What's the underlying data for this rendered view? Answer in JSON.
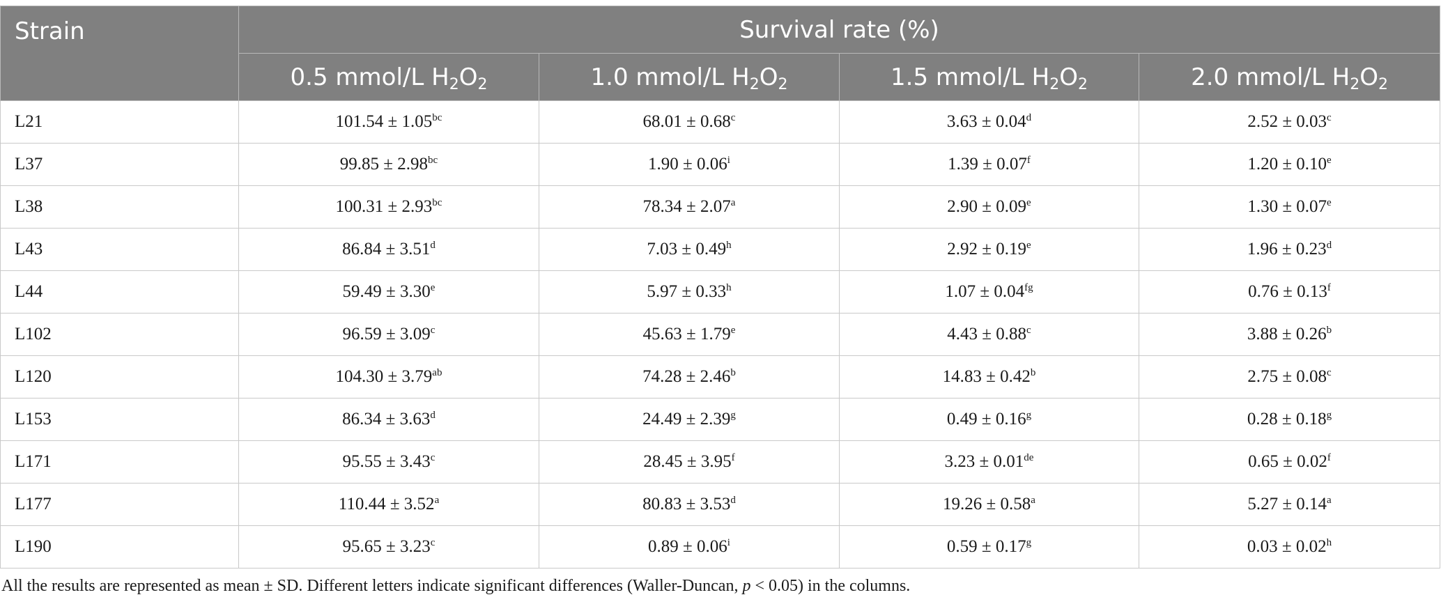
{
  "table": {
    "strain_header": "Strain",
    "group_header": "Survival rate (%)",
    "columns": [
      {
        "prefix": "0.5 mmol/L H",
        "sub1": "2",
        "mid": "O",
        "sub2": "2"
      },
      {
        "prefix": "1.0 mmol/L H",
        "sub1": "2",
        "mid": "O",
        "sub2": "2"
      },
      {
        "prefix": "1.5 mmol/L H",
        "sub1": "2",
        "mid": "O",
        "sub2": "2"
      },
      {
        "prefix": "2.0 mmol/L H",
        "sub1": "2",
        "mid": "O",
        "sub2": "2"
      }
    ],
    "rows": [
      {
        "strain": "L21",
        "cells": [
          {
            "v": "101.54 ± 1.05",
            "s": "bc"
          },
          {
            "v": "68.01 ± 0.68",
            "s": "c"
          },
          {
            "v": "3.63 ± 0.04",
            "s": "d"
          },
          {
            "v": "2.52 ± 0.03",
            "s": "c"
          }
        ]
      },
      {
        "strain": "L37",
        "cells": [
          {
            "v": "99.85 ± 2.98",
            "s": "bc"
          },
          {
            "v": "1.90 ± 0.06",
            "s": "i"
          },
          {
            "v": "1.39 ± 0.07",
            "s": "f"
          },
          {
            "v": "1.20 ± 0.10",
            "s": "e"
          }
        ]
      },
      {
        "strain": "L38",
        "cells": [
          {
            "v": "100.31 ± 2.93",
            "s": "bc"
          },
          {
            "v": "78.34 ± 2.07",
            "s": "a"
          },
          {
            "v": "2.90 ± 0.09",
            "s": "e"
          },
          {
            "v": "1.30 ± 0.07",
            "s": "e"
          }
        ]
      },
      {
        "strain": "L43",
        "cells": [
          {
            "v": "86.84 ± 3.51",
            "s": "d"
          },
          {
            "v": "7.03 ± 0.49",
            "s": "h"
          },
          {
            "v": "2.92 ± 0.19",
            "s": "e"
          },
          {
            "v": "1.96 ± 0.23",
            "s": "d"
          }
        ]
      },
      {
        "strain": "L44",
        "cells": [
          {
            "v": "59.49 ± 3.30",
            "s": "e"
          },
          {
            "v": "5.97 ± 0.33",
            "s": "h"
          },
          {
            "v": "1.07 ± 0.04",
            "s": "fg"
          },
          {
            "v": "0.76 ± 0.13",
            "s": "f"
          }
        ]
      },
      {
        "strain": "L102",
        "cells": [
          {
            "v": "96.59 ± 3.09",
            "s": "c"
          },
          {
            "v": "45.63 ± 1.79",
            "s": "e"
          },
          {
            "v": "4.43 ± 0.88",
            "s": "c"
          },
          {
            "v": "3.88 ± 0.26",
            "s": "b"
          }
        ]
      },
      {
        "strain": "L120",
        "cells": [
          {
            "v": "104.30 ± 3.79",
            "s": "ab"
          },
          {
            "v": "74.28 ± 2.46",
            "s": "b"
          },
          {
            "v": "14.83 ± 0.42",
            "s": "b"
          },
          {
            "v": "2.75 ± 0.08",
            "s": "c"
          }
        ]
      },
      {
        "strain": "L153",
        "cells": [
          {
            "v": "86.34 ± 3.63",
            "s": "d"
          },
          {
            "v": "24.49 ± 2.39",
            "s": "g"
          },
          {
            "v": "0.49 ± 0.16",
            "s": "g"
          },
          {
            "v": "0.28 ± 0.18",
            "s": "g"
          }
        ]
      },
      {
        "strain": "L171",
        "cells": [
          {
            "v": "95.55 ± 3.43",
            "s": "c"
          },
          {
            "v": "28.45 ± 3.95",
            "s": "f"
          },
          {
            "v": "3.23 ± 0.01",
            "s": "de"
          },
          {
            "v": "0.65 ± 0.02",
            "s": "f"
          }
        ]
      },
      {
        "strain": "L177",
        "cells": [
          {
            "v": "110.44 ± 3.52",
            "s": "a"
          },
          {
            "v": "80.83 ± 3.53",
            "s": "d"
          },
          {
            "v": "19.26 ± 0.58",
            "s": "a"
          },
          {
            "v": "5.27 ± 0.14",
            "s": "a"
          }
        ]
      },
      {
        "strain": "L190",
        "cells": [
          {
            "v": "95.65 ± 3.23",
            "s": "c"
          },
          {
            "v": "0.89 ± 0.06",
            "s": "i"
          },
          {
            "v": "0.59 ± 0.17",
            "s": "g"
          },
          {
            "v": "0.03 ± 0.02",
            "s": "h"
          }
        ]
      }
    ]
  },
  "footnote": {
    "before": "All the results are represented as mean ± SD. Different letters indicate significant differences (Waller-Duncan, ",
    "italic": "p",
    "after": " < 0.05) in the columns."
  },
  "colors": {
    "header_bg": "#808080",
    "header_text": "#ffffff",
    "grid": "#c9c9c9"
  }
}
